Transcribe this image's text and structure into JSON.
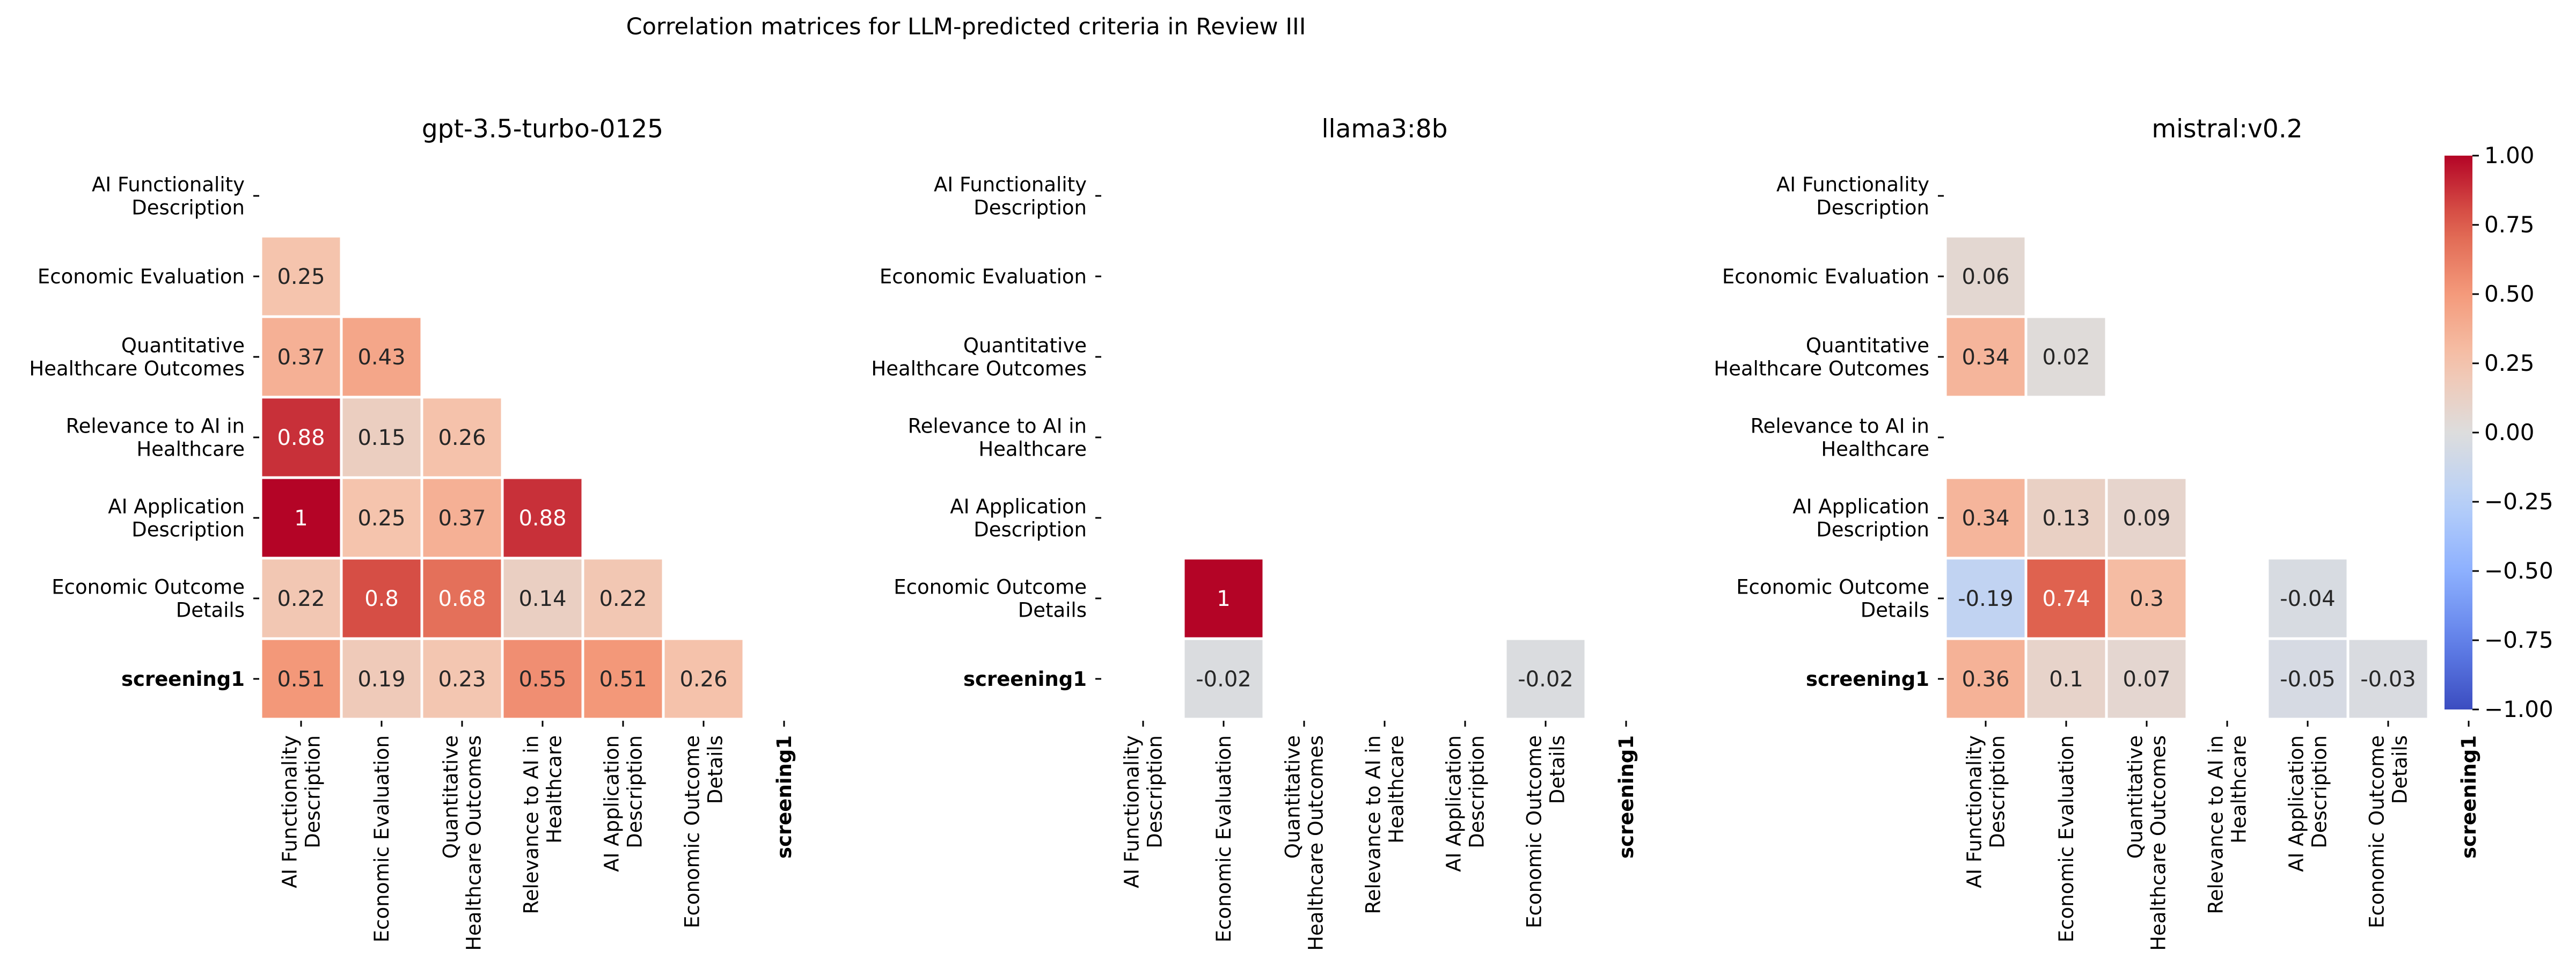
{
  "figure": {
    "title": "Correlation matrices for LLM-predicted criteria in Review III"
  },
  "chart_data": [
    {
      "type": "heatmap",
      "title": "gpt-3.5-turbo-0125",
      "rows": [
        [
          "AI Functionality",
          "Description"
        ],
        [
          "Economic Evaluation"
        ],
        [
          "Quantitative",
          "Healthcare Outcomes"
        ],
        [
          "Relevance to AI in",
          "Healthcare"
        ],
        [
          "AI Application",
          "Description"
        ],
        [
          "Economic Outcome",
          "Details"
        ],
        [
          "screening1"
        ]
      ],
      "columns": [
        [
          "AI Functionality",
          "Description"
        ],
        [
          "Economic Evaluation"
        ],
        [
          "Quantitative",
          "Healthcare Outcomes"
        ],
        [
          "Relevance to AI in",
          "Healthcare"
        ],
        [
          "AI Application",
          "Description"
        ],
        [
          "Economic Outcome",
          "Details"
        ],
        [
          "screening1"
        ]
      ],
      "bold_label": "screening1",
      "values": [
        [
          null,
          null,
          null,
          null,
          null,
          null,
          null
        ],
        [
          0.25,
          null,
          null,
          null,
          null,
          null,
          null
        ],
        [
          0.37,
          0.43,
          null,
          null,
          null,
          null,
          null
        ],
        [
          0.88,
          0.15,
          0.26,
          null,
          null,
          null,
          null
        ],
        [
          1,
          0.25,
          0.37,
          0.88,
          null,
          null,
          null
        ],
        [
          0.22,
          0.8,
          0.68,
          0.14,
          0.22,
          null,
          null
        ],
        [
          0.51,
          0.19,
          0.23,
          0.55,
          0.51,
          0.26,
          null
        ]
      ],
      "value_labels": [
        [
          null,
          null,
          null,
          null,
          null,
          null,
          null
        ],
        [
          "0.25",
          null,
          null,
          null,
          null,
          null,
          null
        ],
        [
          "0.37",
          "0.43",
          null,
          null,
          null,
          null,
          null
        ],
        [
          "0.88",
          "0.15",
          "0.26",
          null,
          null,
          null,
          null
        ],
        [
          "1",
          "0.25",
          "0.37",
          "0.88",
          null,
          null,
          null
        ],
        [
          "0.22",
          "0.8",
          "0.68",
          "0.14",
          "0.22",
          null,
          null
        ],
        [
          "0.51",
          "0.19",
          "0.23",
          "0.55",
          "0.51",
          "0.26",
          null
        ]
      ],
      "mask": "upper-triangle-and-diagonal"
    },
    {
      "type": "heatmap",
      "title": "llama3:8b",
      "rows": [
        [
          "AI Functionality",
          "Description"
        ],
        [
          "Economic Evaluation"
        ],
        [
          "Quantitative",
          "Healthcare Outcomes"
        ],
        [
          "Relevance to AI in",
          "Healthcare"
        ],
        [
          "AI Application",
          "Description"
        ],
        [
          "Economic Outcome",
          "Details"
        ],
        [
          "screening1"
        ]
      ],
      "columns": [
        [
          "AI Functionality",
          "Description"
        ],
        [
          "Economic Evaluation"
        ],
        [
          "Quantitative",
          "Healthcare Outcomes"
        ],
        [
          "Relevance to AI in",
          "Healthcare"
        ],
        [
          "AI Application",
          "Description"
        ],
        [
          "Economic Outcome",
          "Details"
        ],
        [
          "screening1"
        ]
      ],
      "bold_label": "screening1",
      "values": [
        [
          null,
          null,
          null,
          null,
          null,
          null,
          null
        ],
        [
          null,
          null,
          null,
          null,
          null,
          null,
          null
        ],
        [
          null,
          null,
          null,
          null,
          null,
          null,
          null
        ],
        [
          null,
          null,
          null,
          null,
          null,
          null,
          null
        ],
        [
          null,
          null,
          null,
          null,
          null,
          null,
          null
        ],
        [
          null,
          1,
          null,
          null,
          null,
          null,
          null
        ],
        [
          null,
          -0.02,
          null,
          null,
          null,
          -0.02,
          null
        ]
      ],
      "value_labels": [
        [
          null,
          null,
          null,
          null,
          null,
          null,
          null
        ],
        [
          null,
          null,
          null,
          null,
          null,
          null,
          null
        ],
        [
          null,
          null,
          null,
          null,
          null,
          null,
          null
        ],
        [
          null,
          null,
          null,
          null,
          null,
          null,
          null
        ],
        [
          null,
          null,
          null,
          null,
          null,
          null,
          null
        ],
        [
          null,
          "1",
          null,
          null,
          null,
          null,
          null
        ],
        [
          null,
          "-0.02",
          null,
          null,
          null,
          "-0.02",
          null
        ]
      ],
      "mask": "upper-triangle-and-diagonal"
    },
    {
      "type": "heatmap",
      "title": "mistral:v0.2",
      "rows": [
        [
          "AI Functionality",
          "Description"
        ],
        [
          "Economic Evaluation"
        ],
        [
          "Quantitative",
          "Healthcare Outcomes"
        ],
        [
          "Relevance to AI in",
          "Healthcare"
        ],
        [
          "AI Application",
          "Description"
        ],
        [
          "Economic Outcome",
          "Details"
        ],
        [
          "screening1"
        ]
      ],
      "columns": [
        [
          "AI Functionality",
          "Description"
        ],
        [
          "Economic Evaluation"
        ],
        [
          "Quantitative",
          "Healthcare Outcomes"
        ],
        [
          "Relevance to AI in",
          "Healthcare"
        ],
        [
          "AI Application",
          "Description"
        ],
        [
          "Economic Outcome",
          "Details"
        ],
        [
          "screening1"
        ]
      ],
      "bold_label": "screening1",
      "values": [
        [
          null,
          null,
          null,
          null,
          null,
          null,
          null
        ],
        [
          0.06,
          null,
          null,
          null,
          null,
          null,
          null
        ],
        [
          0.34,
          0.02,
          null,
          null,
          null,
          null,
          null
        ],
        [
          null,
          null,
          null,
          null,
          null,
          null,
          null
        ],
        [
          0.34,
          0.13,
          0.09,
          null,
          null,
          null,
          null
        ],
        [
          -0.19,
          0.74,
          0.3,
          null,
          -0.04,
          null,
          null
        ],
        [
          0.36,
          0.1,
          0.07,
          null,
          -0.05,
          -0.03,
          null
        ]
      ],
      "value_labels": [
        [
          null,
          null,
          null,
          null,
          null,
          null,
          null
        ],
        [
          "0.06",
          null,
          null,
          null,
          null,
          null,
          null
        ],
        [
          "0.34",
          "0.02",
          null,
          null,
          null,
          null,
          null
        ],
        [
          null,
          null,
          null,
          null,
          null,
          null,
          null
        ],
        [
          "0.34",
          "0.13",
          "0.09",
          null,
          null,
          null,
          null
        ],
        [
          "-0.19",
          "0.74",
          "0.3",
          null,
          "-0.04",
          null,
          null
        ],
        [
          "0.36",
          "0.1",
          "0.07",
          null,
          "-0.05",
          "-0.03",
          null
        ]
      ],
      "mask": "upper-triangle-and-diagonal"
    }
  ],
  "colorbar": {
    "colormap": "coolwarm",
    "vmin": -1,
    "vmax": 1,
    "ticks": [
      1,
      0.75,
      0.5,
      0.25,
      0,
      -0.25,
      -0.5,
      -0.75,
      -1
    ],
    "tick_labels": [
      "1.00",
      "0.75",
      "0.50",
      "0.25",
      "0.00",
      "−0.25",
      "−0.50",
      "−0.75",
      "−1.00"
    ]
  }
}
